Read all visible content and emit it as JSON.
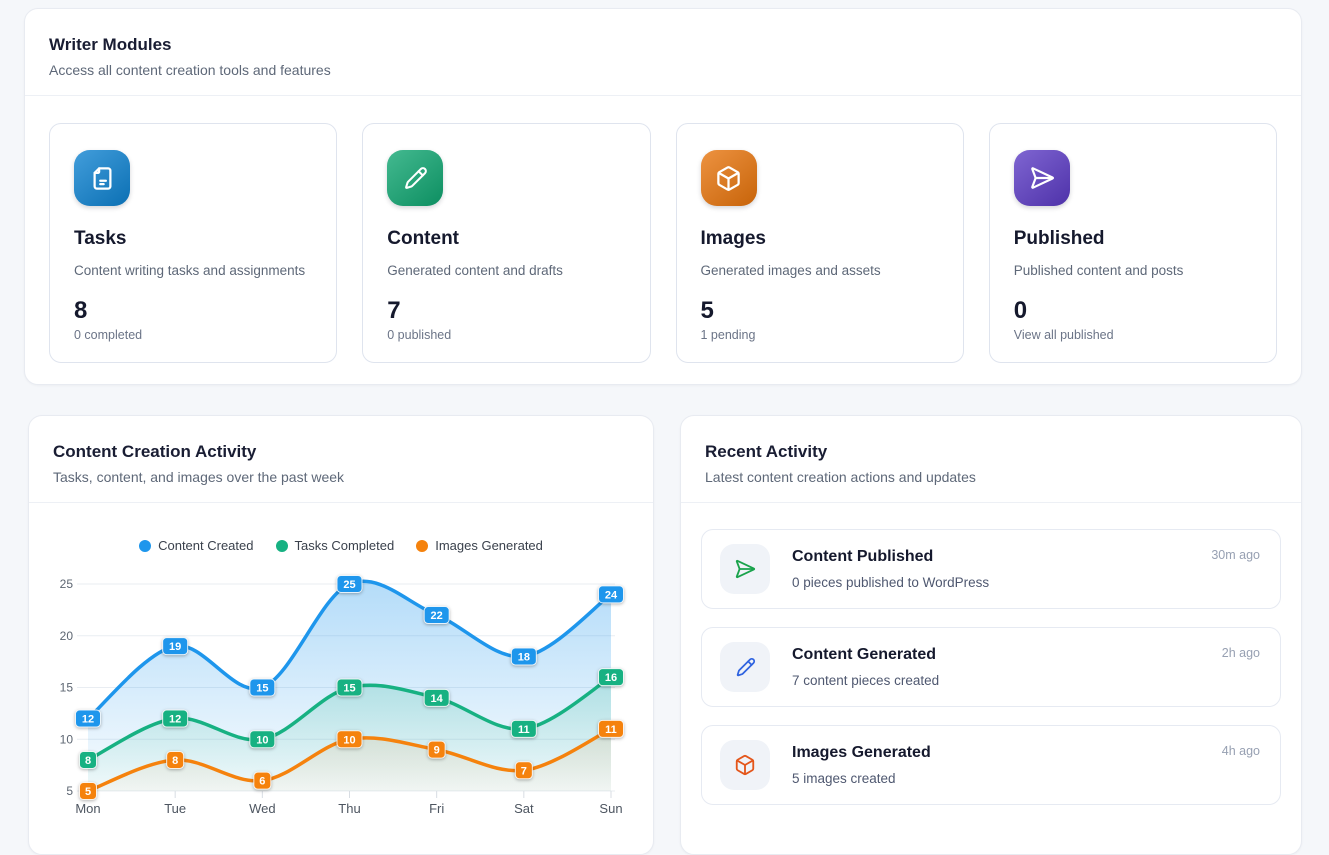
{
  "writer_modules": {
    "title": "Writer Modules",
    "subtitle": "Access all content creation tools and features",
    "cards": [
      {
        "title": "Tasks",
        "description": "Content writing tasks and assignments",
        "count": "8",
        "subtext": "0 completed",
        "icon": "file-text-icon",
        "accent": "#0d82d1"
      },
      {
        "title": "Content",
        "description": "Generated content and drafts",
        "count": "7",
        "subtext": "0 published",
        "icon": "pencil-icon",
        "accent": "#0fa671"
      },
      {
        "title": "Images",
        "description": "Generated images and assets",
        "count": "5",
        "subtext": "1 pending",
        "icon": "cube-icon",
        "accent": "#e8740b"
      },
      {
        "title": "Published",
        "description": "Published content and posts",
        "count": "0",
        "subtext": "View all published",
        "icon": "send-icon",
        "accent": "#5b3ac5"
      }
    ]
  },
  "activity_panel": {
    "title": "Content Creation Activity",
    "subtitle": "Tasks, content, and images over the past week"
  },
  "chart_data": {
    "type": "line",
    "categories": [
      "Mon",
      "Tue",
      "Wed",
      "Thu",
      "Fri",
      "Sat",
      "Sun"
    ],
    "series": [
      {
        "name": "Content Created",
        "color": "#1e96ec",
        "values": [
          12,
          19,
          15,
          25,
          22,
          18,
          24
        ]
      },
      {
        "name": "Tasks Completed",
        "color": "#17b182",
        "values": [
          8,
          12,
          10,
          15,
          14,
          11,
          16
        ]
      },
      {
        "name": "Images Generated",
        "color": "#f5820d",
        "values": [
          5,
          8,
          6,
          10,
          9,
          7,
          11
        ]
      }
    ],
    "title": "Content Creation Activity",
    "xlabel": "",
    "ylabel": "",
    "y_ticks": [
      5,
      10,
      15,
      20,
      25
    ],
    "ylim": [
      5,
      26.5
    ],
    "grid": true,
    "legend_position": "top",
    "area_fill": true,
    "point_labels": true
  },
  "recent_activity": {
    "title": "Recent Activity",
    "subtitle": "Latest content creation actions and updates",
    "items": [
      {
        "title": "Content Published",
        "description": "0 pieces published to WordPress",
        "time": "30m ago",
        "icon": "send-icon",
        "icon_color": "#1aa34c"
      },
      {
        "title": "Content Generated",
        "description": "7 content pieces created",
        "time": "2h ago",
        "icon": "pencil-icon",
        "icon_color": "#2f63e0"
      },
      {
        "title": "Images Generated",
        "description": "5 images created",
        "time": "4h ago",
        "icon": "cube-icon",
        "icon_color": "#e4561b"
      }
    ]
  }
}
